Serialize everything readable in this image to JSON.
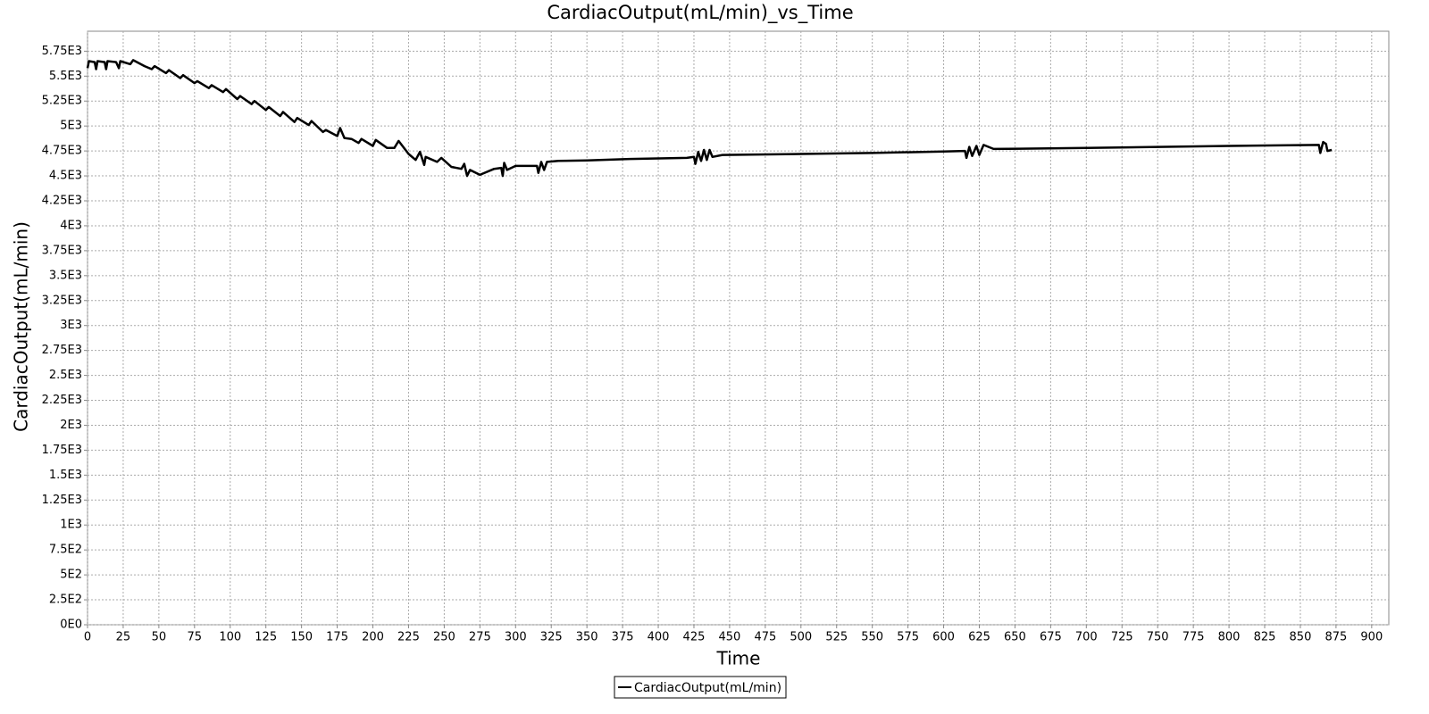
{
  "chart_data": {
    "type": "line",
    "title": "CardiacOutput(mL/min)_vs_Time",
    "x_label": "Time",
    "y_label": "CardiacOutput(mL/min)",
    "x": [
      0,
      1,
      5,
      6,
      7,
      12,
      13,
      14,
      20,
      22,
      23,
      30,
      32,
      40,
      45,
      47,
      55,
      57,
      65,
      67,
      75,
      77,
      85,
      87,
      95,
      97,
      105,
      107,
      115,
      117,
      125,
      127,
      135,
      137,
      145,
      147,
      155,
      157,
      165,
      167,
      175,
      177,
      180,
      185,
      190,
      192,
      200,
      202,
      210,
      215,
      218,
      225,
      230,
      233,
      236,
      237,
      245,
      248,
      255,
      262,
      264,
      266,
      268,
      275,
      285,
      290,
      291,
      292,
      294,
      300,
      315,
      316,
      318,
      320,
      322,
      330,
      350,
      380,
      420,
      425,
      426,
      428,
      430,
      432,
      434,
      436,
      438,
      445,
      500,
      550,
      600,
      615,
      616,
      618,
      620,
      623,
      625,
      628,
      635,
      700,
      800,
      863,
      864,
      866,
      868,
      869,
      872
    ],
    "series": [
      {
        "name": "CardiacOutput(mL/min)",
        "color": "#000000",
        "values": [
          5580,
          5650,
          5640,
          5570,
          5650,
          5640,
          5570,
          5650,
          5640,
          5580,
          5650,
          5620,
          5660,
          5600,
          5570,
          5600,
          5530,
          5560,
          5480,
          5510,
          5430,
          5450,
          5380,
          5410,
          5340,
          5370,
          5270,
          5300,
          5220,
          5250,
          5160,
          5190,
          5100,
          5140,
          5040,
          5080,
          5010,
          5050,
          4940,
          4960,
          4900,
          4980,
          4880,
          4870,
          4830,
          4870,
          4800,
          4860,
          4780,
          4780,
          4850,
          4720,
          4660,
          4740,
          4610,
          4690,
          4640,
          4680,
          4590,
          4570,
          4620,
          4500,
          4560,
          4510,
          4570,
          4580,
          4500,
          4630,
          4560,
          4600,
          4600,
          4530,
          4640,
          4560,
          4640,
          4650,
          4655,
          4670,
          4680,
          4690,
          4620,
          4740,
          4650,
          4760,
          4660,
          4760,
          4690,
          4710,
          4720,
          4730,
          4745,
          4750,
          4680,
          4790,
          4700,
          4800,
          4710,
          4810,
          4770,
          4780,
          4800,
          4810,
          4730,
          4840,
          4820,
          4750,
          4760
        ]
      }
    ],
    "xlim": [
      0,
      912
    ],
    "ylim": [
      0,
      5950
    ],
    "xticks": [
      0,
      25,
      50,
      75,
      100,
      125,
      150,
      175,
      200,
      225,
      250,
      275,
      300,
      325,
      350,
      375,
      400,
      425,
      450,
      475,
      500,
      525,
      550,
      575,
      600,
      625,
      650,
      675,
      700,
      725,
      750,
      775,
      800,
      825,
      850,
      875,
      900
    ],
    "yticks": [
      {
        "value": 0,
        "label": "0E0"
      },
      {
        "value": 250,
        "label": "2.5E2"
      },
      {
        "value": 500,
        "label": "5E2"
      },
      {
        "value": 750,
        "label": "7.5E2"
      },
      {
        "value": 1000,
        "label": "1E3"
      },
      {
        "value": 1250,
        "label": "1.25E3"
      },
      {
        "value": 1500,
        "label": "1.5E3"
      },
      {
        "value": 1750,
        "label": "1.75E3"
      },
      {
        "value": 2000,
        "label": "2E3"
      },
      {
        "value": 2250,
        "label": "2.25E3"
      },
      {
        "value": 2500,
        "label": "2.5E3"
      },
      {
        "value": 2750,
        "label": "2.75E3"
      },
      {
        "value": 3000,
        "label": "3E3"
      },
      {
        "value": 3250,
        "label": "3.25E3"
      },
      {
        "value": 3500,
        "label": "3.5E3"
      },
      {
        "value": 3750,
        "label": "3.75E3"
      },
      {
        "value": 4000,
        "label": "4E3"
      },
      {
        "value": 4250,
        "label": "4.25E3"
      },
      {
        "value": 4500,
        "label": "4.5E3"
      },
      {
        "value": 4750,
        "label": "4.75E3"
      },
      {
        "value": 5000,
        "label": "5E3"
      },
      {
        "value": 5250,
        "label": "5.25E3"
      },
      {
        "value": 5500,
        "label": "5.5E3"
      },
      {
        "value": 5750,
        "label": "5.75E3"
      }
    ],
    "grid": true,
    "legend": "bottom"
  }
}
